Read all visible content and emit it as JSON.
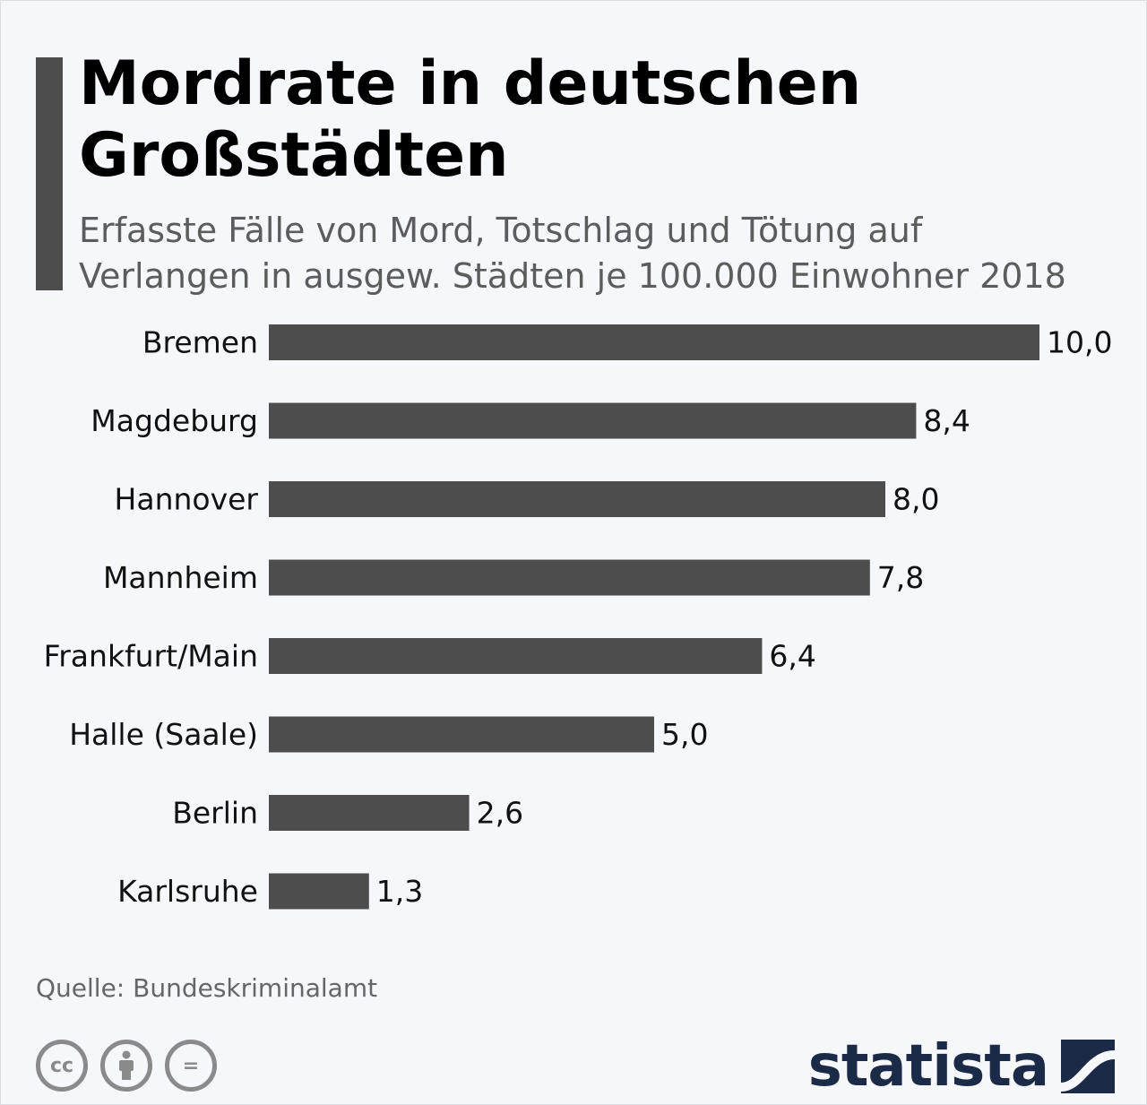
{
  "header": {
    "title": "Mordrate in deutschen\nGroßstädten",
    "subtitle": "Erfasste Fälle von Mord, Totschlag und Tötung auf\nVerlangen in ausgew. Städten je 100.000 Einwohner 2018"
  },
  "chart_data": {
    "type": "bar",
    "orientation": "horizontal",
    "title": "Mordrate in deutschen Großstädten",
    "subtitle": "Erfasste Fälle von Mord, Totschlag und Tötung auf Verlangen in ausgew. Städten je 100.000 Einwohner 2018",
    "categories": [
      "Bremen",
      "Magdeburg",
      "Hannover",
      "Mannheim",
      "Frankfurt/Main",
      "Halle (Saale)",
      "Berlin",
      "Karlsruhe"
    ],
    "values": [
      10.0,
      8.4,
      8.0,
      7.8,
      6.4,
      5.0,
      2.6,
      1.3
    ],
    "value_labels": [
      "10,0",
      "8,4",
      "8,0",
      "7,8",
      "6,4",
      "5,0",
      "2,6",
      "1,3"
    ],
    "xlim": [
      0,
      10
    ],
    "grid": false,
    "bar_color": "#4d4d4d"
  },
  "footer": {
    "source": "Quelle: Bundeskriminalamt",
    "license_icons": [
      "cc-icon",
      "attribution-icon",
      "no-derivatives-icon"
    ],
    "cc_text": "cc",
    "nd_text": "=",
    "brand": "statista",
    "brand_color": "#1b2a47"
  }
}
